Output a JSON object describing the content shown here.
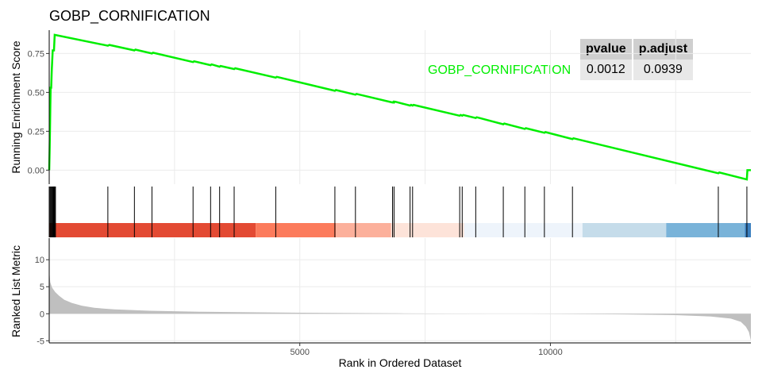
{
  "title": "GOBP_CORNIFICATION",
  "stats": {
    "headers": [
      "pvalue",
      "p.adjust"
    ],
    "values": [
      "0.0012",
      "0.0939"
    ]
  },
  "colors": {
    "curve": "#00ee00",
    "hits": "#000000",
    "metric": "#bfbfbf",
    "grid": "#ebebeb",
    "bands": [
      "#e34a33",
      "#fc7b5c",
      "#fcb09b",
      "#fde3d9",
      "#eef4fb",
      "#c5dcea",
      "#79b3d9",
      "#3a7fbf"
    ]
  },
  "chart_data": [
    {
      "type": "line",
      "title": "GOBP_CORNIFICATION",
      "ylabel": "Running Enrichment Score",
      "xlabel": "",
      "xlim": [
        0,
        14000
      ],
      "ylim": [
        -0.09,
        0.9
      ],
      "yticks": [
        0.0,
        0.25,
        0.5,
        0.75
      ],
      "ytick_labels": [
        "0.00",
        "0.25",
        "0.50",
        "0.75"
      ],
      "grid": true,
      "series": [
        {
          "name": "GOBP_CORNIFICATION",
          "points": [
            [
              0,
              0.0
            ],
            [
              8,
              0.12
            ],
            [
              16,
              0.27
            ],
            [
              22,
              0.41
            ],
            [
              28,
              0.53
            ],
            [
              40,
              0.53
            ],
            [
              50,
              0.64
            ],
            [
              70,
              0.77
            ],
            [
              95,
              0.77
            ],
            [
              110,
              0.87
            ],
            [
              1170,
              0.8
            ],
            [
              1200,
              0.805
            ],
            [
              1700,
              0.77
            ],
            [
              1720,
              0.775
            ],
            [
              2050,
              0.75
            ],
            [
              2070,
              0.755
            ],
            [
              2870,
              0.695
            ],
            [
              2890,
              0.7
            ],
            [
              3220,
              0.675
            ],
            [
              3240,
              0.68
            ],
            [
              3400,
              0.665
            ],
            [
              3420,
              0.67
            ],
            [
              3690,
              0.65
            ],
            [
              3710,
              0.655
            ],
            [
              4520,
              0.595
            ],
            [
              4540,
              0.6
            ],
            [
              5700,
              0.51
            ],
            [
              5720,
              0.515
            ],
            [
              6110,
              0.485
            ],
            [
              6130,
              0.49
            ],
            [
              6850,
              0.435
            ],
            [
              6870,
              0.44
            ],
            [
              6880,
              0.435
            ],
            [
              6900,
              0.44
            ],
            [
              7200,
              0.415
            ],
            [
              7220,
              0.42
            ],
            [
              7250,
              0.415
            ],
            [
              7270,
              0.42
            ],
            [
              8190,
              0.35
            ],
            [
              8210,
              0.355
            ],
            [
              8240,
              0.35
            ],
            [
              8260,
              0.355
            ],
            [
              8510,
              0.335
            ],
            [
              8530,
              0.34
            ],
            [
              9060,
              0.295
            ],
            [
              9080,
              0.3
            ],
            [
              9490,
              0.265
            ],
            [
              9510,
              0.27
            ],
            [
              9880,
              0.24
            ],
            [
              9900,
              0.245
            ],
            [
              10440,
              0.2
            ],
            [
              10460,
              0.205
            ],
            [
              13350,
              -0.02
            ],
            [
              13370,
              -0.015
            ],
            [
              13920,
              -0.06
            ],
            [
              13930,
              0.0
            ],
            [
              14000,
              0.0
            ]
          ]
        }
      ],
      "annotations": [
        "GOBP_CORNIFICATION"
      ],
      "table": {
        "headers": [
          "pvalue",
          "p.adjust"
        ],
        "rows": [
          [
            "0.0012",
            "0.0939"
          ]
        ]
      }
    },
    {
      "type": "scatter",
      "title": "",
      "description_of_marks": "gene hit positions (rank)",
      "xlim": [
        0,
        14000
      ],
      "hits": [
        5,
        20,
        35,
        50,
        65,
        80,
        95,
        110,
        125,
        1170,
        1700,
        2050,
        2870,
        3220,
        3400,
        3690,
        4520,
        5700,
        6110,
        6850,
        6880,
        7200,
        7250,
        8190,
        8240,
        8510,
        9060,
        9490,
        9880,
        10440,
        13350,
        13920
      ],
      "band_edges": [
        0,
        4120,
        5720,
        6820,
        8280,
        10640,
        12310,
        13880,
        14000
      ]
    },
    {
      "type": "area",
      "title": "",
      "ylabel": "Ranked List Metric",
      "xlabel": "Rank in Ordered Dataset",
      "xlim": [
        0,
        14000
      ],
      "ylim": [
        -5.4,
        14
      ],
      "yticks": [
        -5,
        0,
        5,
        10
      ],
      "xticks": [
        5000,
        10000
      ],
      "grid": true,
      "profile": [
        [
          0,
          8.0
        ],
        [
          20,
          5.8
        ],
        [
          60,
          4.8
        ],
        [
          120,
          4.0
        ],
        [
          200,
          3.3
        ],
        [
          300,
          2.6
        ],
        [
          450,
          2.0
        ],
        [
          650,
          1.5
        ],
        [
          900,
          1.1
        ],
        [
          1300,
          0.8
        ],
        [
          2000,
          0.55
        ],
        [
          3000,
          0.38
        ],
        [
          4000,
          0.27
        ],
        [
          5000,
          0.18
        ],
        [
          6000,
          0.12
        ],
        [
          7000,
          0.07
        ],
        [
          8000,
          0.03
        ],
        [
          8800,
          0.01
        ],
        [
          8820,
          0.0
        ],
        [
          9580,
          0.0
        ],
        [
          9600,
          -0.01
        ],
        [
          10500,
          -0.05
        ],
        [
          11500,
          -0.12
        ],
        [
          12500,
          -0.25
        ],
        [
          13200,
          -0.5
        ],
        [
          13600,
          -0.9
        ],
        [
          13800,
          -1.5
        ],
        [
          13900,
          -2.4
        ],
        [
          13960,
          -3.4
        ],
        [
          14000,
          -5.0
        ]
      ]
    }
  ]
}
